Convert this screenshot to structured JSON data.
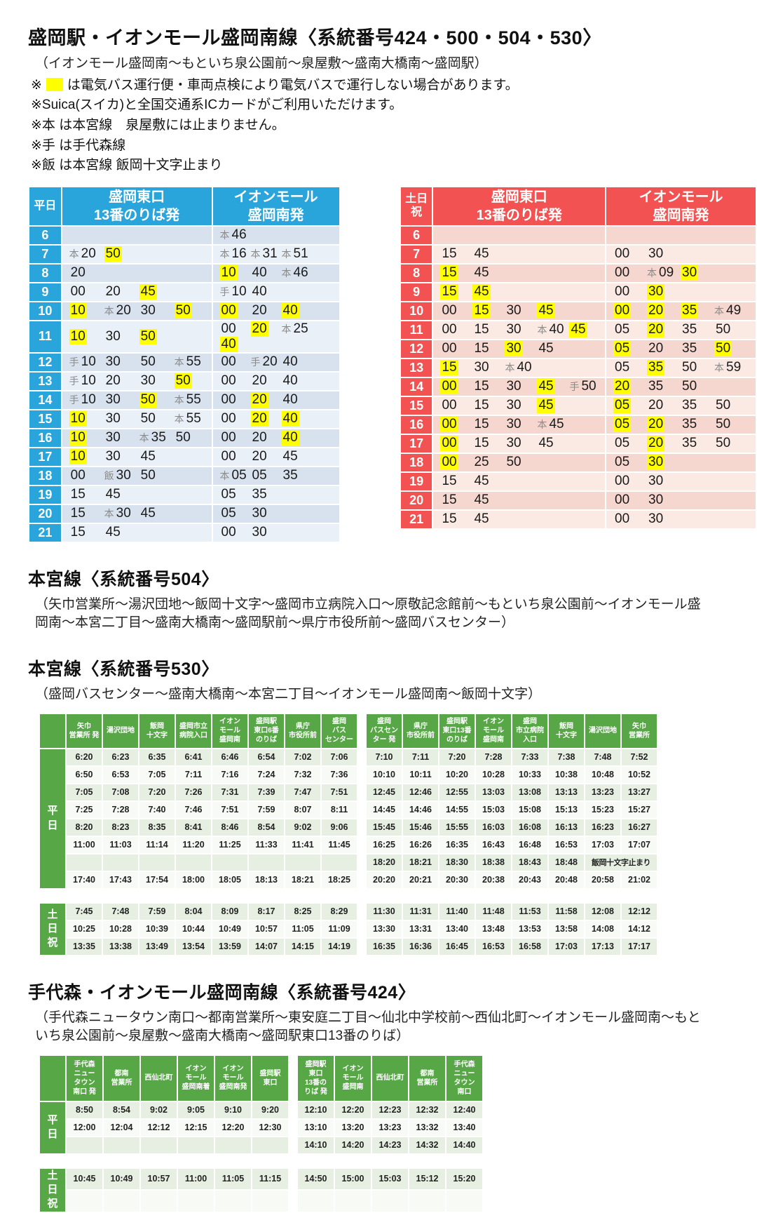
{
  "theme": {
    "weekday_accent": "#29A5DC",
    "weekday_row_a": "#D8E2EE",
    "weekday_row_b": "#EAF0F7",
    "weekend_accent": "#F25251",
    "weekend_row_a": "#F6D7CF",
    "weekend_row_b": "#FBEAE4",
    "green_accent": "#57A747",
    "green_row_a": "#E6EFE1",
    "green_row_b": "#F7FAF5",
    "highlight": "#FFFF00"
  },
  "header": {
    "title": "盛岡駅・イオンモール盛岡南線〈系統番号424・500・504・530〉",
    "route": "（イオンモール盛岡南〜もといち泉公園前〜泉屋敷〜盛南大橋南〜盛岡駅）",
    "notes": [
      {
        "pre": "※",
        "swatch": true,
        "text": "は電気バス運行便・車両点検により電気バスで運行しない場合があります。"
      },
      {
        "pre": "※",
        "swatch": false,
        "text": "Suica(スイカ)と全国交通系ICカードがご利用いただけます。"
      },
      {
        "pre": "※",
        "swatch": false,
        "text": "本 は本宮線　泉屋敷には止まりません。"
      },
      {
        "pre": "※",
        "swatch": false,
        "text": "手 は手代森線"
      },
      {
        "pre": "※",
        "swatch": false,
        "text": "飯 は本宮線 飯岡十文字止まり"
      }
    ]
  },
  "hourly": {
    "weekday": {
      "label": "平日",
      "col1": "盛岡東口\n13番のりば発",
      "col2": "イオンモール\n盛岡南発",
      "rows": [
        {
          "hour": "6",
          "dep": [],
          "arr": [
            "本46"
          ]
        },
        {
          "hour": "7",
          "dep": [
            "本20",
            "50*"
          ],
          "arr": [
            "本16",
            "本31",
            "本51"
          ]
        },
        {
          "hour": "8",
          "dep": [
            "20"
          ],
          "arr": [
            "10*",
            "40",
            "本46"
          ]
        },
        {
          "hour": "9",
          "dep": [
            "00",
            "20",
            "45*"
          ],
          "arr": [
            "手10",
            "40"
          ]
        },
        {
          "hour": "10",
          "dep": [
            "10*",
            "本20",
            "30",
            "50*"
          ],
          "arr": [
            "00*",
            "20",
            "40*"
          ]
        },
        {
          "hour": "11",
          "dep": [
            "10*",
            "30",
            "50*"
          ],
          "arr": [
            "00",
            "20*",
            "本25",
            "40*"
          ]
        },
        {
          "hour": "12",
          "dep": [
            "手10",
            "30",
            "50",
            "本55"
          ],
          "arr": [
            "00",
            "手20",
            "40"
          ]
        },
        {
          "hour": "13",
          "dep": [
            "手10",
            "20",
            "30",
            "50*"
          ],
          "arr": [
            "00",
            "20",
            "40"
          ]
        },
        {
          "hour": "14",
          "dep": [
            "手10",
            "30",
            "50*",
            "本55"
          ],
          "arr": [
            "00",
            "20*",
            "40"
          ]
        },
        {
          "hour": "15",
          "dep": [
            "10*",
            "30",
            "50",
            "本55"
          ],
          "arr": [
            "00",
            "20*",
            "40*"
          ]
        },
        {
          "hour": "16",
          "dep": [
            "10*",
            "30",
            "本35",
            "50"
          ],
          "arr": [
            "00",
            "20",
            "40*"
          ]
        },
        {
          "hour": "17",
          "dep": [
            "10*",
            "30",
            "45"
          ],
          "arr": [
            "00",
            "20",
            "45"
          ]
        },
        {
          "hour": "18",
          "dep": [
            "00",
            "飯30",
            "50"
          ],
          "arr": [
            "本05",
            "05",
            "35"
          ]
        },
        {
          "hour": "19",
          "dep": [
            "15",
            "45"
          ],
          "arr": [
            "05",
            "35"
          ]
        },
        {
          "hour": "20",
          "dep": [
            "15",
            "本30",
            "45"
          ],
          "arr": [
            "05",
            "30"
          ]
        },
        {
          "hour": "21",
          "dep": [
            "15",
            "45"
          ],
          "arr": [
            "00",
            "30"
          ]
        }
      ]
    },
    "weekend": {
      "label": "土日\n祝",
      "col1": "盛岡東口\n13番のりば発",
      "col2": "イオンモール\n盛岡南発",
      "rows": [
        {
          "hour": "6",
          "dep": [],
          "arr": []
        },
        {
          "hour": "7",
          "dep": [
            "15",
            "45"
          ],
          "arr": [
            "00",
            "30"
          ]
        },
        {
          "hour": "8",
          "dep": [
            "15*",
            "45"
          ],
          "arr": [
            "00",
            "本09",
            "30*"
          ]
        },
        {
          "hour": "9",
          "dep": [
            "15*",
            "45*"
          ],
          "arr": [
            "00",
            "30*"
          ]
        },
        {
          "hour": "10",
          "dep": [
            "00",
            "15*",
            "30",
            "45*"
          ],
          "arr": [
            "00*",
            "20*",
            "35*",
            "本49"
          ]
        },
        {
          "hour": "11",
          "dep": [
            "00",
            "15",
            "30",
            "本40",
            "45*"
          ],
          "arr": [
            "05",
            "20*",
            "35",
            "50"
          ]
        },
        {
          "hour": "12",
          "dep": [
            "00",
            "15",
            "30*",
            "45"
          ],
          "arr": [
            "05*",
            "20",
            "35",
            "50*"
          ]
        },
        {
          "hour": "13",
          "dep": [
            "15*",
            "30",
            "本40"
          ],
          "arr": [
            "05",
            "35*",
            "50",
            "本59"
          ]
        },
        {
          "hour": "14",
          "dep": [
            "00*",
            "15",
            "30",
            "45*",
            "手50"
          ],
          "arr": [
            "20*",
            "35",
            "50"
          ]
        },
        {
          "hour": "15",
          "dep": [
            "00",
            "15",
            "30",
            "45*"
          ],
          "arr": [
            "05*",
            "20",
            "35",
            "50"
          ]
        },
        {
          "hour": "16",
          "dep": [
            "00*",
            "15",
            "30",
            "本45"
          ],
          "arr": [
            "05*",
            "20*",
            "35",
            "50"
          ]
        },
        {
          "hour": "17",
          "dep": [
            "00*",
            "15",
            "30",
            "45"
          ],
          "arr": [
            "05",
            "20*",
            "35",
            "50"
          ]
        },
        {
          "hour": "18",
          "dep": [
            "00*",
            "25",
            "50"
          ],
          "arr": [
            "05",
            "30*"
          ]
        },
        {
          "hour": "19",
          "dep": [
            "15",
            "45"
          ],
          "arr": [
            "00",
            "30"
          ]
        },
        {
          "hour": "20",
          "dep": [
            "15",
            "45"
          ],
          "arr": [
            "00",
            "30"
          ]
        },
        {
          "hour": "21",
          "dep": [
            "15",
            "45"
          ],
          "arr": [
            "00",
            "30"
          ]
        }
      ]
    }
  },
  "section504": {
    "title": "本宮線〈系統番号504〉",
    "route": "（矢巾営業所〜湯沢団地〜飯岡十文字〜盛岡市立病院入口〜原敬記念館前〜もといち泉公園前〜イオンモール盛岡南〜本宮二丁目〜盛南大橋南〜盛岡駅前〜県庁市役所前〜盛岡バスセンター）"
  },
  "section530": {
    "title": "本宮線〈系統番号530〉",
    "route": "（盛岡バスセンター〜盛南大橋南〜本宮二丁目〜イオンモール盛岡南〜飯岡十文字）",
    "weekday_label": "平\n日",
    "weekend_label": "土\n日\n祝",
    "headers_left": [
      "矢巾\n営業所 発",
      "湯沢団地",
      "飯岡\n十文字",
      "盛岡市立\n病院入口",
      "イオン\nモール\n盛岡南",
      "盛岡駅\n東口6番\nのりば",
      "県庁\n市役所前",
      "盛岡\nバス\nセンター"
    ],
    "headers_right": [
      "盛岡\nバスセン\nター 発",
      "県庁\n市役所前",
      "盛岡駅\n東口13番\nのりば",
      "イオン\nモール\n盛岡南",
      "盛岡\n市立病院\n入口",
      "飯岡\n十文字",
      "湯沢団地",
      "矢巾\n営業所"
    ],
    "weekday_rows": [
      {
        "left": [
          "6:20",
          "6:23",
          "6:35",
          "6:41",
          "6:46",
          "6:54",
          "7:02",
          "7:06"
        ],
        "right": [
          "7:10",
          "7:11",
          "7:20",
          "7:28",
          "7:33",
          "7:38",
          "7:48",
          "7:52"
        ]
      },
      {
        "left": [
          "6:50",
          "6:53",
          "7:05",
          "7:11",
          "7:16",
          "7:24",
          "7:32",
          "7:36"
        ],
        "right": [
          "10:10",
          "10:11",
          "10:20",
          "10:28",
          "10:33",
          "10:38",
          "10:48",
          "10:52"
        ]
      },
      {
        "left": [
          "7:05",
          "7:08",
          "7:20",
          "7:26",
          "7:31",
          "7:39",
          "7:47",
          "7:51"
        ],
        "right": [
          "12:45",
          "12:46",
          "12:55",
          "13:03",
          "13:08",
          "13:13",
          "13:23",
          "13:27"
        ]
      },
      {
        "left": [
          "7:25",
          "7:28",
          "7:40",
          "7:46",
          "7:51",
          "7:59",
          "8:07",
          "8:11"
        ],
        "right": [
          "14:45",
          "14:46",
          "14:55",
          "15:03",
          "15:08",
          "15:13",
          "15:23",
          "15:27"
        ]
      },
      {
        "left": [
          "8:20",
          "8:23",
          "8:35",
          "8:41",
          "8:46",
          "8:54",
          "9:02",
          "9:06"
        ],
        "right": [
          "15:45",
          "15:46",
          "15:55",
          "16:03",
          "16:08",
          "16:13",
          "16:23",
          "16:27"
        ]
      },
      {
        "left": [
          "11:00",
          "11:03",
          "11:14",
          "11:20",
          "11:25",
          "11:33",
          "11:41",
          "11:45"
        ],
        "right": [
          "16:25",
          "16:26",
          "16:35",
          "16:43",
          "16:48",
          "16:53",
          "17:03",
          "17:07"
        ]
      },
      {
        "left": [
          "",
          "",
          "",
          "",
          "",
          "",
          "",
          ""
        ],
        "right": [
          "18:20",
          "18:21",
          "18:30",
          "18:38",
          "18:43",
          "18:48",
          {
            "span": 2,
            "text": "飯岡十文字止まり"
          }
        ]
      },
      {
        "left": [
          "17:40",
          "17:43",
          "17:54",
          "18:00",
          "18:05",
          "18:13",
          "18:21",
          "18:25"
        ],
        "right": [
          "20:20",
          "20:21",
          "20:30",
          "20:38",
          "20:43",
          "20:48",
          "20:58",
          "21:02"
        ]
      }
    ],
    "weekend_rows": [
      {
        "left": [
          "7:45",
          "7:48",
          "7:59",
          "8:04",
          "8:09",
          "8:17",
          "8:25",
          "8:29"
        ],
        "right": [
          "11:30",
          "11:31",
          "11:40",
          "11:48",
          "11:53",
          "11:58",
          "12:08",
          "12:12"
        ]
      },
      {
        "left": [
          "10:25",
          "10:28",
          "10:39",
          "10:44",
          "10:49",
          "10:57",
          "11:05",
          "11:09"
        ],
        "right": [
          "13:30",
          "13:31",
          "13:40",
          "13:48",
          "13:53",
          "13:58",
          "14:08",
          "14:12"
        ]
      },
      {
        "left": [
          "13:35",
          "13:38",
          "13:49",
          "13:54",
          "13:59",
          "14:07",
          "14:15",
          "14:19"
        ],
        "right": [
          "16:35",
          "16:36",
          "16:45",
          "16:53",
          "16:58",
          "17:03",
          "17:13",
          "17:17"
        ]
      }
    ]
  },
  "section424": {
    "title": "手代森・イオンモール盛岡南線〈系統番号424〉",
    "route": "（手代森ニュータウン南口〜都南営業所〜東安庭二丁目〜仙北中学校前〜西仙北町〜イオンモール盛岡南〜もといち泉公園前〜泉屋敷〜盛南大橋南〜盛岡駅東口13番のりば）",
    "weekday_label": "平\n日",
    "weekend_label": "土\n日\n祝",
    "headers_left": [
      "手代森\nニュー\nタウン\n南口 発",
      "都南\n営業所",
      "西仙北町",
      "イオン\nモール\n盛岡南着",
      "イオン\nモール\n盛岡南発",
      "盛岡駅\n東口"
    ],
    "headers_right": [
      "盛岡駅\n東口\n13番の\nりば 発",
      "イオン\nモール\n盛岡南",
      "西仙北町",
      "都南\n営業所",
      "手代森\nニュー\nタウン\n南口"
    ],
    "weekday_rows": [
      {
        "left": [
          "8:50",
          "8:54",
          "9:02",
          "9:05",
          "9:10",
          "9:20"
        ],
        "right": [
          "12:10",
          "12:20",
          "12:23",
          "12:32",
          "12:40"
        ]
      },
      {
        "left": [
          "12:00",
          "12:04",
          "12:12",
          "12:15",
          "12:20",
          "12:30"
        ],
        "right": [
          "13:10",
          "13:20",
          "13:23",
          "13:32",
          "13:40"
        ]
      },
      {
        "left": [
          "",
          "",
          "",
          "",
          "",
          ""
        ],
        "right": [
          "14:10",
          "14:20",
          "14:23",
          "14:32",
          "14:40"
        ]
      }
    ],
    "weekend_rows": [
      {
        "left": [
          "10:45",
          "10:49",
          "10:57",
          "11:00",
          "11:05",
          "11:15"
        ],
        "right": [
          "14:50",
          "15:00",
          "15:03",
          "15:12",
          "15:20"
        ]
      },
      {
        "left": [
          "",
          "",
          "",
          "",
          "",
          ""
        ],
        "right": [
          "",
          "",
          "",
          "",
          ""
        ]
      }
    ]
  }
}
